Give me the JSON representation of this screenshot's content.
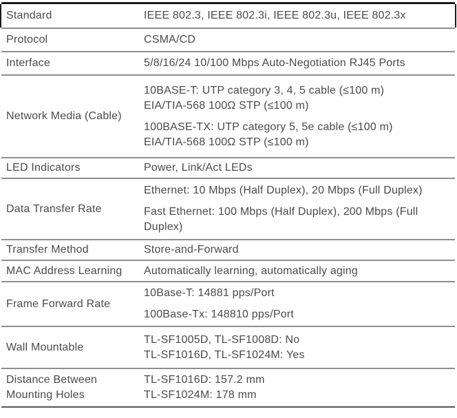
{
  "colors": {
    "text": "#4a4a4a",
    "divider": "#8e8e8e",
    "border_top": "#1a1a1a",
    "border_bottom": "#555555"
  },
  "table": {
    "rows": [
      {
        "label": "Standard",
        "paragraphs": [
          [
            "IEEE 802.3, IEEE 802.3i, IEEE 802.3u, IEEE 802.3x"
          ]
        ]
      },
      {
        "label": "Protocol",
        "paragraphs": [
          [
            "CSMA/CD"
          ]
        ]
      },
      {
        "label": "Interface",
        "paragraphs": [
          [
            "5/8/16/24 10/100 Mbps Auto-Negotiation RJ45 Ports"
          ]
        ]
      },
      {
        "label": "Network Media (Cable)",
        "paragraphs": [
          [
            "10BASE-T: UTP category 3, 4, 5 cable (≤100 m)",
            "EIA/TIA-568 100Ω STP (≤100 m)"
          ],
          [
            "100BASE-TX: UTP category 5, 5e cable (≤100 m)",
            "EIA/TIA-568 100Ω STP (≤100 m)"
          ]
        ]
      },
      {
        "label": "LED Indicators",
        "paragraphs": [
          [
            "Power, Link/Act LEDs"
          ]
        ]
      },
      {
        "label": "Data Transfer Rate",
        "paragraphs": [
          [
            "Ethernet: 10 Mbps (Half Duplex), 20 Mbps (Full Duplex)"
          ],
          [
            "Fast Ethernet: 100 Mbps (Half Duplex), 200 Mbps (Full",
            "Duplex)"
          ]
        ]
      },
      {
        "label": "Transfer Method",
        "paragraphs": [
          [
            "Store-and-Forward"
          ]
        ]
      },
      {
        "label": "MAC Address Learning",
        "paragraphs": [
          [
            "Automatically learning, automatically aging"
          ]
        ]
      },
      {
        "label": "Frame Forward Rate",
        "paragraphs": [
          [
            "10Base-T: 14881 pps/Port"
          ],
          [
            "100Base-Tx: 148810 pps/Port"
          ]
        ]
      },
      {
        "label": "Wall Mountable",
        "paragraphs": [
          [
            "TL-SF1005D, TL-SF1008D: No",
            "TL-SF1016D, TL-SF1024M: Yes"
          ]
        ]
      },
      {
        "label": "Distance Between Mounting Holes",
        "paragraphs": [
          [
            "TL-SF1016D: 157.2 mm",
            "TL-SF1024M: 178 mm"
          ]
        ]
      }
    ]
  }
}
